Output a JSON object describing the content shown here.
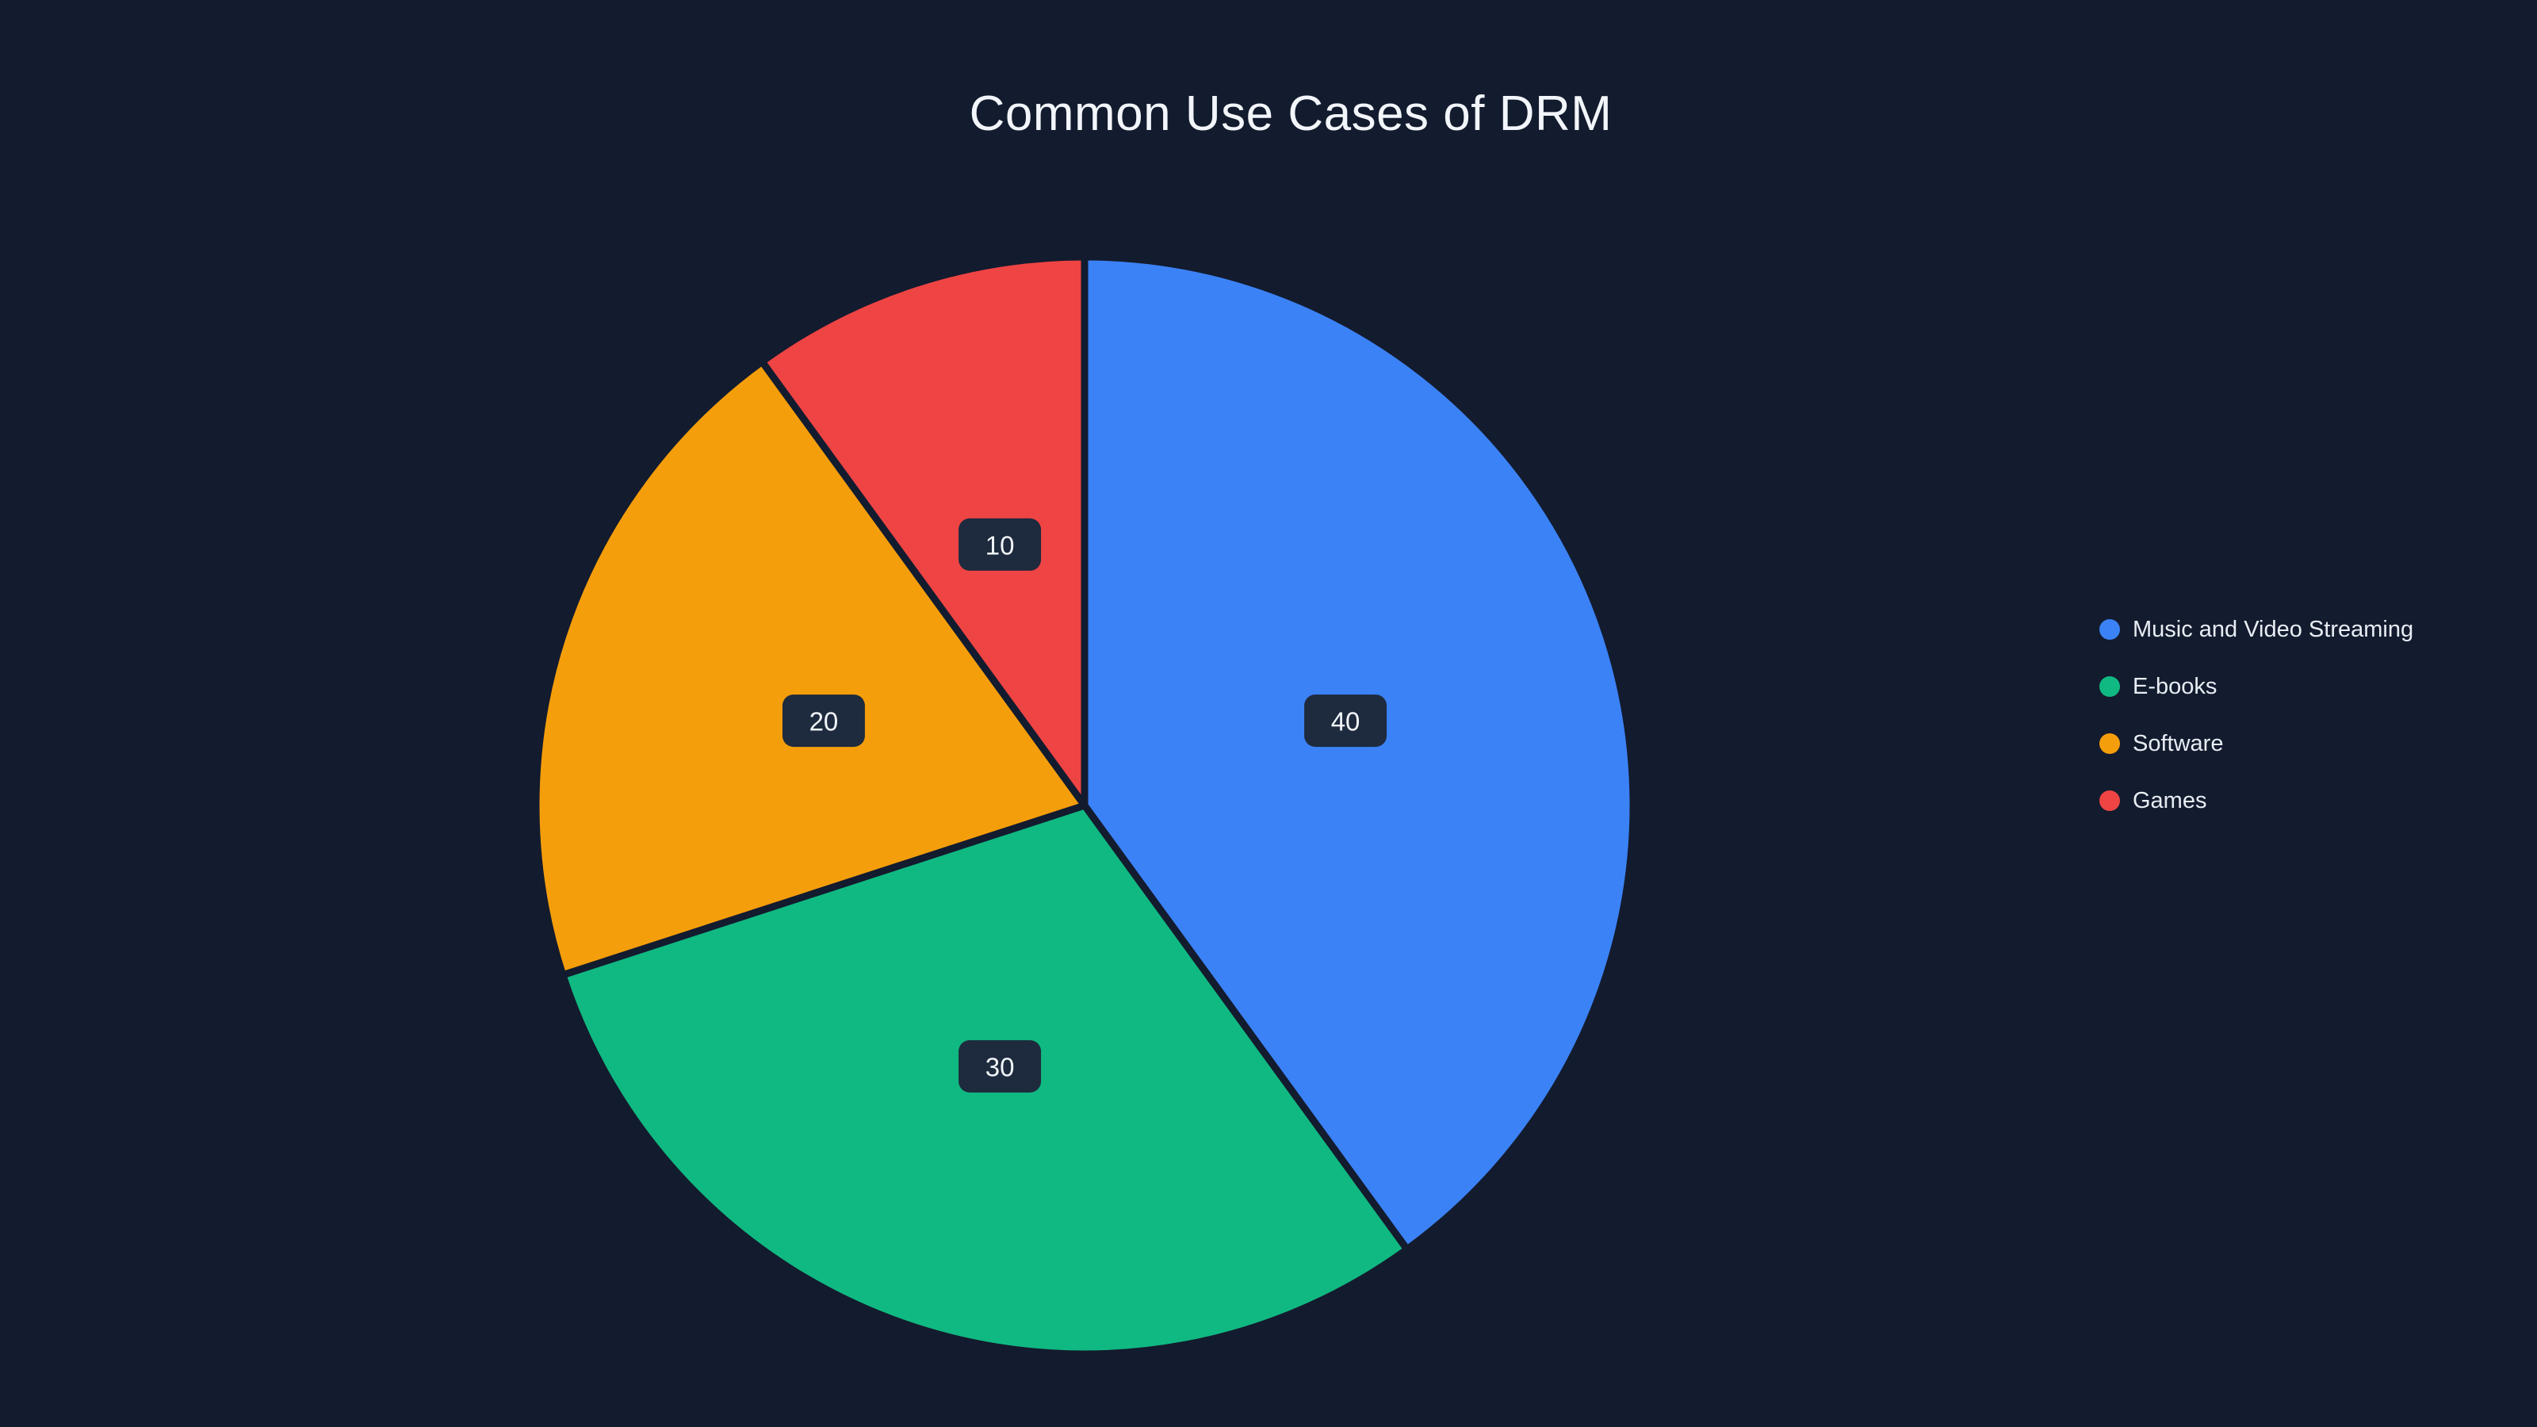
{
  "chart_data": {
    "type": "pie",
    "title": "Common Use Cases of DRM",
    "series": [
      {
        "name": "Music and Video Streaming",
        "value": 40,
        "color": "#3b82f6"
      },
      {
        "name": "E-books",
        "value": 30,
        "color": "#10b981"
      },
      {
        "name": "Software",
        "value": 20,
        "color": "#f59e0b"
      },
      {
        "name": "Games",
        "value": 10,
        "color": "#ef4444"
      }
    ],
    "total": 100,
    "start_angle_deg": 0,
    "direction": "clockwise",
    "slice_value_labels": [
      "40",
      "30",
      "20",
      "10"
    ],
    "label_radius_ratio": 0.5,
    "legend_position": "right",
    "background": "#131b2e",
    "label_box_color": "#1e2a3d",
    "label_text_color": "#f1f5f9"
  }
}
